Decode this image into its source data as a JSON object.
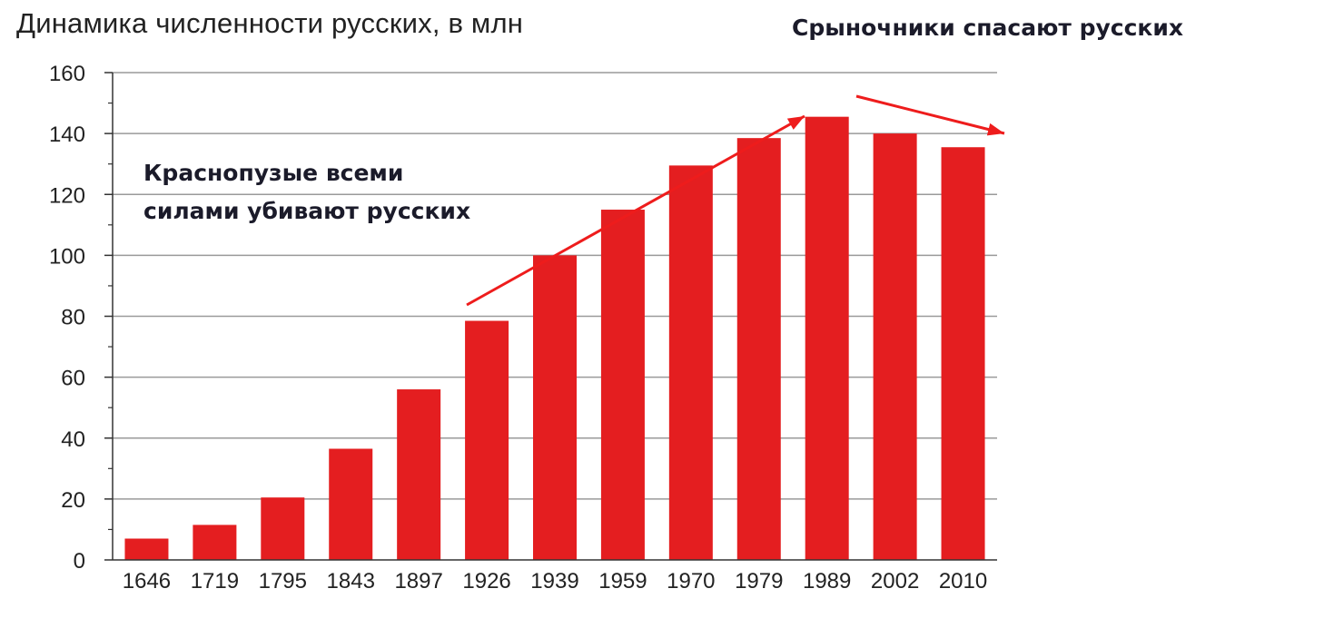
{
  "chart_data": {
    "type": "bar",
    "title": "Динамика численности русских, в млн",
    "categories": [
      "1646",
      "1719",
      "1795",
      "1843",
      "1897",
      "1926",
      "1939",
      "1959",
      "1970",
      "1979",
      "1989",
      "2002",
      "2010"
    ],
    "values": [
      7,
      11.5,
      20.5,
      36.5,
      56,
      78.5,
      100,
      115,
      129.5,
      138.5,
      145.5,
      140,
      135.5
    ],
    "ylim": [
      0,
      160
    ],
    "yticks": [
      0,
      20,
      40,
      60,
      80,
      100,
      120,
      140,
      160
    ],
    "grid": true,
    "bar_color": "#e41e20",
    "xlabel": "",
    "ylabel": "",
    "annotations": {
      "left_line1": "Краснопузые всеми",
      "left_line2": "силами убивают русских",
      "top_right": "Срыночники спасают русских",
      "arrow_color": "#ee1c1c"
    }
  }
}
